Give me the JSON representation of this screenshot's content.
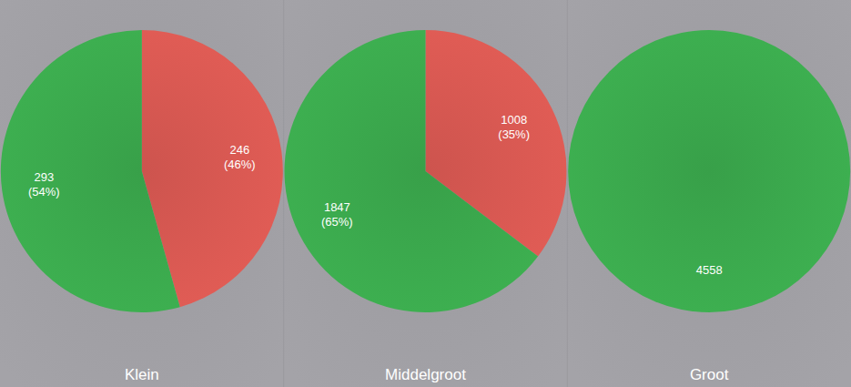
{
  "chart_data": [
    {
      "type": "pie",
      "title": "Klein",
      "categories": [
        null,
        null
      ],
      "values": [
        246,
        293
      ],
      "value_labels": [
        "246 (46%)",
        "293 (54%)"
      ],
      "colors": [
        "#e05c55",
        "#3daf50"
      ],
      "data_labels": true
    },
    {
      "type": "pie",
      "title": "Middelgroot",
      "categories": [
        null,
        null
      ],
      "values": [
        1008,
        1847
      ],
      "value_labels": [
        "1008 (35%)",
        "1847 (65%)"
      ],
      "colors": [
        "#e05c55",
        "#3daf50"
      ],
      "data_labels": true
    },
    {
      "type": "pie",
      "title": "Groot",
      "categories": [
        null
      ],
      "values": [
        4558
      ],
      "value_labels": [
        "4558"
      ],
      "colors": [
        "#3daf50"
      ],
      "data_labels": true
    }
  ]
}
